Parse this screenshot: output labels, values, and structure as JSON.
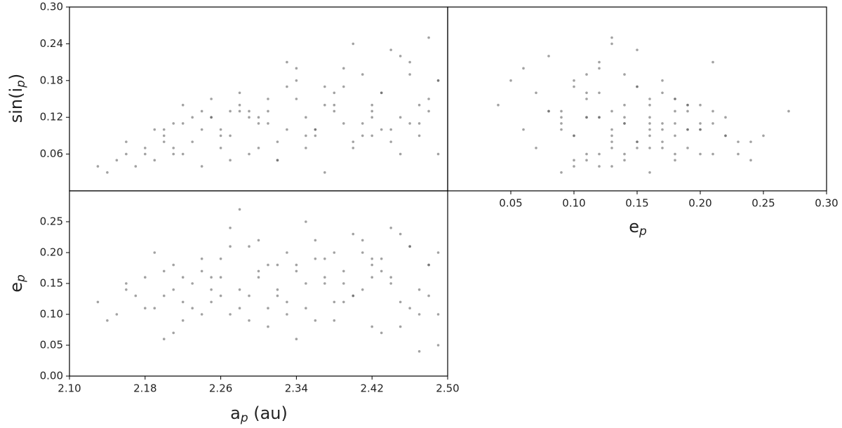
{
  "chart_data": {
    "type": "scatter",
    "color": "#555555",
    "points": {
      "a": [
        2.13,
        2.15,
        2.16,
        2.18,
        2.19,
        2.2,
        2.21,
        2.22,
        2.23,
        2.24,
        2.25,
        2.26,
        2.27,
        2.28,
        2.29,
        2.3,
        2.31,
        2.32,
        2.33,
        2.34,
        2.35,
        2.36,
        2.37,
        2.38,
        2.39,
        2.4,
        2.41,
        2.42,
        2.43,
        2.44,
        2.45,
        2.46,
        2.47,
        2.48,
        2.49,
        2.17,
        2.19,
        2.21,
        2.23,
        2.25,
        2.27,
        2.29,
        2.31,
        2.33,
        2.35,
        2.37,
        2.39,
        2.41,
        2.43,
        2.45,
        2.47,
        2.49,
        2.14,
        2.16,
        2.2,
        2.22,
        2.24,
        2.26,
        2.28,
        2.3,
        2.32,
        2.34,
        2.36,
        2.38,
        2.4,
        2.42,
        2.44,
        2.46,
        2.48,
        2.21,
        2.24,
        2.27,
        2.3,
        2.33,
        2.36,
        2.39,
        2.42,
        2.45,
        2.48,
        2.18,
        2.22,
        2.26,
        2.29,
        2.32,
        2.35,
        2.38,
        2.41,
        2.44,
        2.47,
        2.2,
        2.25,
        2.31,
        2.37,
        2.43,
        2.49,
        2.28,
        2.34,
        2.4,
        2.46,
        2.42
      ],
      "e": [
        0.12,
        0.1,
        0.14,
        0.16,
        0.11,
        0.13,
        0.18,
        0.09,
        0.15,
        0.17,
        0.12,
        0.19,
        0.1,
        0.14,
        0.21,
        0.16,
        0.08,
        0.13,
        0.2,
        0.18,
        0.11,
        0.22,
        0.15,
        0.09,
        0.17,
        0.23,
        0.14,
        0.19,
        0.07,
        0.16,
        0.12,
        0.21,
        0.1,
        0.18,
        0.05,
        0.13,
        0.2,
        0.07,
        0.11,
        0.16,
        0.24,
        0.13,
        0.18,
        0.1,
        0.15,
        0.19,
        0.12,
        0.22,
        0.17,
        0.08,
        0.14,
        0.2,
        0.09,
        0.15,
        0.06,
        0.12,
        0.19,
        0.16,
        0.11,
        0.22,
        0.14,
        0.17,
        0.09,
        0.2,
        0.13,
        0.16,
        0.24,
        0.11,
        0.18,
        0.14,
        0.1,
        0.21,
        0.17,
        0.12,
        0.19,
        0.15,
        0.08,
        0.23,
        0.13,
        0.11,
        0.16,
        0.13,
        0.09,
        0.18,
        0.25,
        0.12,
        0.2,
        0.15,
        0.04,
        0.17,
        0.14,
        0.11,
        0.16,
        0.19,
        0.1,
        0.27,
        0.06,
        0.13,
        0.21,
        0.18
      ],
      "sin_i": [
        0.04,
        0.05,
        0.06,
        0.07,
        0.05,
        0.09,
        0.06,
        0.11,
        0.08,
        0.1,
        0.12,
        0.07,
        0.09,
        0.14,
        0.06,
        0.11,
        0.13,
        0.08,
        0.1,
        0.15,
        0.12,
        0.09,
        0.17,
        0.13,
        0.11,
        0.08,
        0.19,
        0.14,
        0.16,
        0.1,
        0.12,
        0.21,
        0.09,
        0.13,
        0.18,
        0.04,
        0.1,
        0.07,
        0.12,
        0.15,
        0.05,
        0.13,
        0.11,
        0.17,
        0.07,
        0.14,
        0.2,
        0.09,
        0.16,
        0.22,
        0.11,
        0.06,
        0.03,
        0.08,
        0.1,
        0.06,
        0.13,
        0.09,
        0.16,
        0.12,
        0.05,
        0.18,
        0.1,
        0.14,
        0.24,
        0.12,
        0.08,
        0.19,
        0.15,
        0.11,
        0.04,
        0.13,
        0.07,
        0.21,
        0.1,
        0.17,
        0.13,
        0.06,
        0.25,
        0.06,
        0.14,
        0.1,
        0.12,
        0.05,
        0.09,
        0.16,
        0.11,
        0.23,
        0.14,
        0.08,
        0.12,
        0.15,
        0.03,
        0.1,
        0.18,
        0.13,
        0.2,
        0.07,
        0.11,
        0.09
      ]
    },
    "panels": [
      {
        "xlim": [
          2.1,
          2.5
        ],
        "ylim": [
          0,
          0.3
        ],
        "yticks": [
          0.06,
          0.12,
          0.18,
          0.24,
          {
            "value": 0.3,
            "label": "0.30"
          }
        ],
        "ylabel": {
          "text": "sin(i",
          "sub": "p",
          "tail": ")"
        }
      },
      {
        "xlim": [
          0,
          0.3
        ],
        "ylim": [
          0,
          0.3
        ],
        "xticks": [
          0.05,
          {
            "value": 0.1,
            "label": "0.10"
          },
          0.15,
          {
            "value": 0.2,
            "label": "0.20"
          },
          0.25,
          {
            "value": 0.3,
            "label": "0.30"
          }
        ],
        "xlabel": {
          "text": "e",
          "sub": "p"
        }
      },
      {
        "xlim": [
          2.1,
          2.5
        ],
        "ylim": [
          0,
          0.3
        ],
        "xticks": [
          {
            "value": 2.1,
            "label": "2.10"
          },
          2.18,
          2.26,
          2.34,
          2.42,
          {
            "value": 2.5,
            "label": "2.50"
          }
        ],
        "yticks": [
          {
            "value": 0,
            "label": "0.00"
          },
          0.05,
          {
            "value": 0.1,
            "label": "0.10"
          },
          0.15,
          {
            "value": 0.2,
            "label": "0.20"
          },
          0.25
        ],
        "xlabel": {
          "text": "a",
          "sub": "p",
          "tail": " (au)"
        },
        "ylabel": {
          "text": "e",
          "sub": "p"
        }
      }
    ]
  }
}
